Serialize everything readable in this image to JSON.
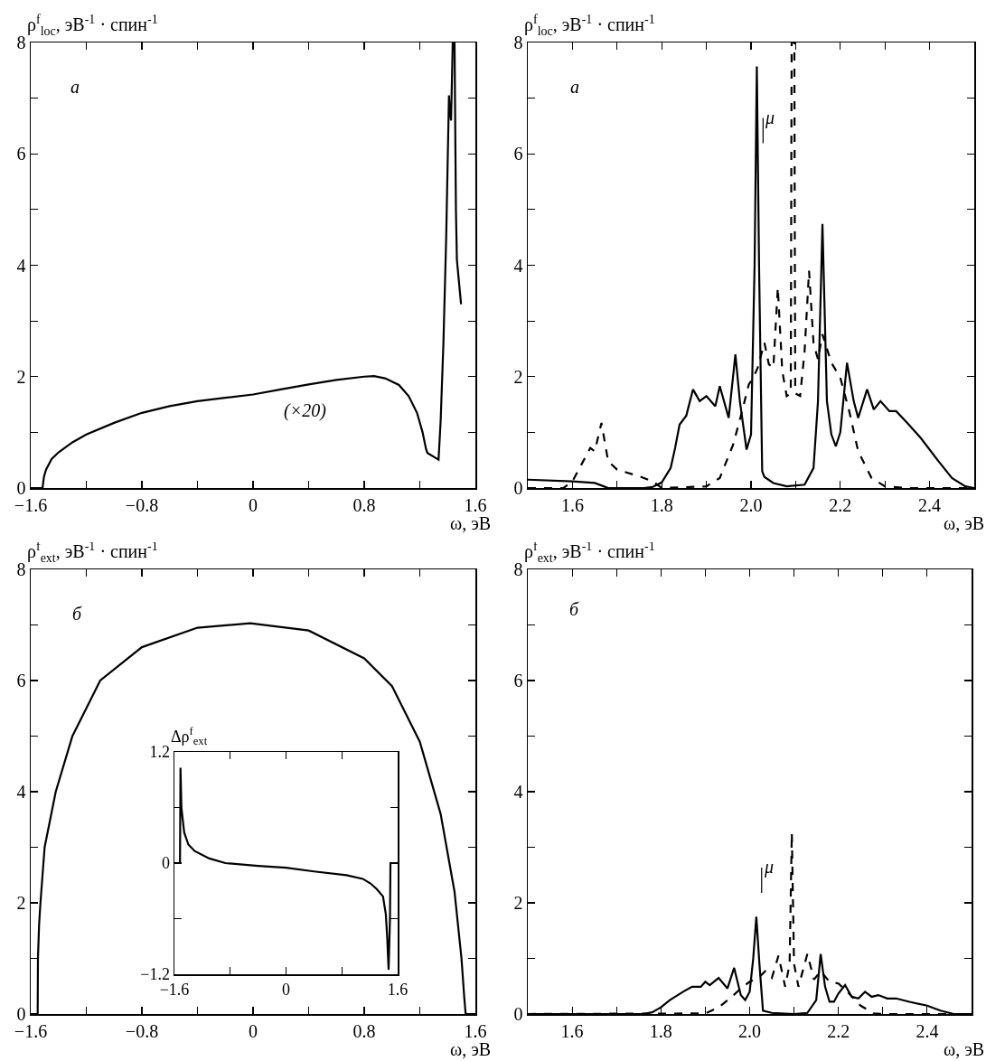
{
  "chart_data": [
    {
      "type": "line",
      "ylabel": "ρ$^{f}$$_{loc}$, эВ$^{-1}$ · спин$^{-1}$",
      "xlabel": "ω, эВ",
      "annotations": [
        "а",
        "(×20)"
      ],
      "xlim": [
        -1.6,
        1.6
      ],
      "ylim": [
        0,
        8
      ],
      "xticks": [
        {
          "value": -1.6,
          "label": "−1.6"
        },
        {
          "value": -1.2,
          "label": null
        },
        {
          "value": -0.8,
          "label": "−0.8"
        },
        {
          "value": -0.4,
          "label": null
        },
        0,
        {
          "value": 0.4,
          "label": null
        },
        0.8,
        {
          "value": 1.2,
          "label": null
        },
        1.6
      ],
      "yticks": [
        0,
        {
          "value": 1,
          "label": null
        },
        2,
        {
          "value": 3,
          "label": null
        },
        4,
        {
          "value": 5,
          "label": null
        },
        6,
        {
          "value": 7,
          "label": null
        },
        8
      ],
      "series": [
        {
          "color": "#000000",
          "line_style": "solid",
          "x": [
            -1.6,
            -1.515,
            -1.505,
            -1.49,
            -1.45,
            -1.4,
            -1.3,
            -1.2,
            -1.0,
            -0.8,
            -0.6,
            -0.4,
            -0.2,
            0,
            0.2,
            0.4,
            0.6,
            0.8,
            0.87,
            0.95,
            1.05,
            1.12,
            1.18,
            1.22,
            1.245,
            1.255,
            1.335,
            1.35,
            1.37,
            1.39,
            1.41,
            1.415,
            1.425,
            1.437,
            1.45,
            1.46,
            1.467,
            1.497
          ],
          "values": [
            0,
            0,
            0.2,
            0.33,
            0.52,
            0.64,
            0.82,
            0.96,
            1.17,
            1.35,
            1.47,
            1.56,
            1.62,
            1.68,
            1.77,
            1.86,
            1.94,
            2.0,
            2.01,
            1.97,
            1.85,
            1.65,
            1.35,
            1.0,
            0.7,
            0.63,
            0.51,
            1.2,
            2.6,
            4.5,
            7.05,
            6.8,
            6.6,
            8,
            8,
            5.0,
            4.1,
            3.3
          ]
        }
      ]
    },
    {
      "type": "line",
      "ylabel": "ρ$^{f}$$_{loc}$, эВ$^{-1}$ · спин$^{-1}$",
      "xlabel": "ω, эВ",
      "annotations": [
        "а",
        "μ"
      ],
      "xlim": [
        1.5,
        2.5
      ],
      "ylim": [
        0,
        8
      ],
      "xticks": [
        1.6,
        {
          "value": 1.7,
          "label": null
        },
        1.8,
        {
          "value": 1.9,
          "label": null
        },
        {
          "value": 2.0,
          "label": "2.0"
        },
        {
          "value": 2.1,
          "label": null
        },
        2.2,
        {
          "value": 2.3,
          "label": null
        },
        2.4
      ],
      "yticks": [
        0,
        {
          "value": 1,
          "label": null
        },
        2,
        {
          "value": 3,
          "label": null
        },
        4,
        {
          "value": 5,
          "label": null
        },
        6,
        {
          "value": 7,
          "label": null
        },
        8
      ],
      "series": [
        {
          "color": "#000000",
          "line_style": "solid",
          "x": [
            1.5,
            1.6,
            1.65,
            1.67,
            1.68,
            1.76,
            1.78,
            1.8,
            1.82,
            1.83,
            1.84,
            1.855,
            1.87,
            1.885,
            1.9,
            1.92,
            1.93,
            1.95,
            1.965,
            1.975,
            1.99,
            2.0,
            2.008,
            2.013,
            2.018,
            2.025,
            2.03,
            2.05,
            2.08,
            2.12,
            2.14,
            2.15,
            2.16,
            2.17,
            2.18,
            2.19,
            2.2,
            2.215,
            2.23,
            2.24,
            2.26,
            2.275,
            2.29,
            2.31,
            2.325,
            2.35,
            2.38,
            2.42,
            2.45,
            2.48,
            2.5
          ],
          "values": [
            0.15,
            0.12,
            0.09,
            0.03,
            0,
            0,
            0.02,
            0.1,
            0.36,
            0.72,
            1.14,
            1.3,
            1.77,
            1.56,
            1.65,
            1.47,
            1.83,
            1.26,
            2.4,
            1.56,
            0.69,
            0.96,
            4.0,
            7.57,
            4.0,
            0.3,
            0.2,
            0.09,
            0.03,
            0.06,
            0.36,
            1.56,
            4.74,
            1.56,
            0.96,
            0.75,
            1.0,
            2.25,
            1.56,
            1.26,
            1.77,
            1.41,
            1.56,
            1.38,
            1.38,
            1.17,
            0.9,
            0.48,
            0.18,
            0.03,
            0
          ]
        },
        {
          "color": "#000000",
          "line_style": "dashed",
          "x": [
            1.5,
            1.58,
            1.6,
            1.62,
            1.64,
            1.65,
            1.665,
            1.68,
            1.7,
            1.75,
            1.78,
            1.8,
            1.9,
            1.93,
            1.96,
            1.98,
            1.995,
            2.005,
            2.015,
            2.03,
            2.04,
            2.05,
            2.06,
            2.07,
            2.08,
            2.089,
            2.091,
            2.097,
            2.099,
            2.11,
            2.12,
            2.13,
            2.14,
            2.15,
            2.16,
            2.17,
            2.18,
            2.2,
            2.22,
            2.24,
            2.27,
            2.3,
            2.35,
            2.5
          ],
          "values": [
            0,
            0,
            0.12,
            0.42,
            0.72,
            0.66,
            1.17,
            0.48,
            0.33,
            0.21,
            0.12,
            0,
            0.03,
            0.18,
            0.78,
            1.38,
            1.86,
            1.98,
            2.16,
            2.61,
            2.22,
            2.16,
            3.6,
            2.1,
            1.65,
            1.7,
            8,
            8,
            1.7,
            1.65,
            2.46,
            3.9,
            2.6,
            2.31,
            2.76,
            2.5,
            2.25,
            1.98,
            1.38,
            0.66,
            0.18,
            0.03,
            0,
            0
          ]
        }
      ]
    },
    {
      "type": "line",
      "ylabel": "ρ$^{f}$$_{ext}$, эВ$^{-1}$ · спин$^{-1}$",
      "xlabel": "ω, эВ",
      "annotations": [
        "б"
      ],
      "xlim": [
        -1.6,
        1.6
      ],
      "ylim": [
        0,
        8
      ],
      "xticks": [
        {
          "value": -1.6,
          "label": "−1.6"
        },
        {
          "value": -1.2,
          "label": null
        },
        {
          "value": -0.8,
          "label": "−0.8"
        },
        {
          "value": -0.4,
          "label": null
        },
        0,
        {
          "value": 0.4,
          "label": null
        },
        0.8,
        {
          "value": 1.2,
          "label": null
        },
        1.6
      ],
      "yticks": [
        0,
        {
          "value": 1,
          "label": null
        },
        2,
        {
          "value": 3,
          "label": null
        },
        4,
        {
          "value": 5,
          "label": null
        },
        6,
        {
          "value": 7,
          "label": null
        },
        8
      ],
      "series": [
        {
          "color": "#000000",
          "line_style": "solid",
          "x": [
            -1.6,
            -1.55,
            -1.548,
            -1.54,
            -1.53,
            -1.5,
            -1.42,
            -1.3,
            -1.1,
            -0.8,
            -0.4,
            -0.02,
            0.4,
            0.8,
            1.0,
            1.2,
            1.35,
            1.45,
            1.5,
            1.52,
            1.53,
            1.6
          ],
          "values": [
            0,
            0,
            1.0,
            1.6,
            2.0,
            3.0,
            4.0,
            5.0,
            6.0,
            6.6,
            6.95,
            7.03,
            6.9,
            6.4,
            5.9,
            4.9,
            3.6,
            2.2,
            1.0,
            0.3,
            0,
            0
          ]
        }
      ]
    },
    {
      "type": "line",
      "ylabel": "Δρ$^{f}$$_{ext}$",
      "xlim": [
        -1.6,
        1.6
      ],
      "ylim": [
        -1.2,
        1.2
      ],
      "xticks": [
        {
          "value": -1.6,
          "label": "−1.6"
        },
        {
          "value": -0.8,
          "label": null
        },
        0,
        {
          "value": 0.8,
          "label": null
        },
        1.6
      ],
      "yticks": [
        {
          "value": -1.2,
          "label": "−1.2"
        },
        {
          "value": -0.6,
          "label": null
        },
        0,
        {
          "value": 0.6,
          "label": null
        },
        1.2
      ],
      "series": [
        {
          "color": "#000000",
          "line_style": "solid",
          "x": [
            -1.6,
            -1.52,
            -1.513,
            -1.5,
            -1.46,
            -1.4,
            -1.31,
            -1.1,
            -0.87,
            -0.4,
            0,
            0.4,
            0.865,
            1.1,
            1.21,
            1.3,
            1.39,
            1.43,
            1.45,
            1.47,
            1.49,
            1.497,
            1.6
          ],
          "values": [
            0,
            0,
            1.03,
            0.6,
            0.33,
            0.2,
            0.13,
            0.05,
            0,
            -0.03,
            -0.05,
            -0.09,
            -0.13,
            -0.17,
            -0.22,
            -0.28,
            -0.36,
            -0.55,
            -0.8,
            -1.15,
            -0.6,
            0,
            0
          ]
        }
      ]
    },
    {
      "type": "line",
      "ylabel": "ρ$^{f}$$_{ext}$, эВ$^{-1}$ · спин$^{-1}$",
      "xlabel": "ω, эВ",
      "annotations": [
        "б",
        "μ"
      ],
      "xlim": [
        1.5,
        2.5
      ],
      "ylim": [
        0,
        8
      ],
      "xticks": [
        1.6,
        {
          "value": 1.7,
          "label": null
        },
        1.8,
        {
          "value": 1.9,
          "label": null
        },
        {
          "value": 2.0,
          "label": "2.0"
        },
        {
          "value": 2.1,
          "label": null
        },
        2.2,
        {
          "value": 2.3,
          "label": null
        },
        2.4
      ],
      "yticks": [
        0,
        {
          "value": 1,
          "label": null
        },
        2,
        {
          "value": 3,
          "label": null
        },
        4,
        {
          "value": 5,
          "label": null
        },
        6,
        {
          "value": 7,
          "label": null
        },
        8
      ],
      "series": [
        {
          "color": "#000000",
          "line_style": "solid",
          "x": [
            1.5,
            1.76,
            1.78,
            1.8,
            1.82,
            1.85,
            1.87,
            1.89,
            1.9,
            1.91,
            1.93,
            1.95,
            1.965,
            1.98,
            1.99,
            2.0,
            2.008,
            2.015,
            2.022,
            2.03,
            2.05,
            2.1,
            2.13,
            2.15,
            2.16,
            2.17,
            2.18,
            2.19,
            2.2,
            2.215,
            2.23,
            2.245,
            2.26,
            2.275,
            2.29,
            2.31,
            2.33,
            2.36,
            2.4,
            2.43,
            2.46,
            2.5
          ],
          "values": [
            0,
            0,
            0.03,
            0.12,
            0.25,
            0.4,
            0.49,
            0.49,
            0.58,
            0.52,
            0.65,
            0.46,
            0.83,
            0.34,
            0.25,
            0.4,
            1.0,
            1.75,
            0.9,
            0.06,
            0.02,
            0,
            0.02,
            0.25,
            1.08,
            0.49,
            0.22,
            0.22,
            0.37,
            0.52,
            0.31,
            0.28,
            0.4,
            0.31,
            0.34,
            0.28,
            0.28,
            0.22,
            0.15,
            0.06,
            0,
            0
          ]
        },
        {
          "color": "#000000",
          "line_style": "dashed",
          "x": [
            1.5,
            1.9,
            1.93,
            1.96,
            1.98,
            2.0,
            2.02,
            2.035,
            2.05,
            2.065,
            2.08,
            2.09,
            2.095,
            2.1,
            2.11,
            2.13,
            2.145,
            2.16,
            2.18,
            2.2,
            2.22,
            2.25,
            2.28,
            2.3,
            2.5
          ],
          "values": [
            0,
            0.01,
            0.12,
            0.31,
            0.46,
            0.58,
            0.65,
            0.77,
            0.65,
            1.05,
            0.49,
            0.9,
            3.26,
            0.9,
            0.49,
            1.08,
            0.62,
            0.77,
            0.58,
            0.55,
            0.4,
            0.15,
            0.01,
            0,
            0
          ]
        }
      ]
    }
  ]
}
